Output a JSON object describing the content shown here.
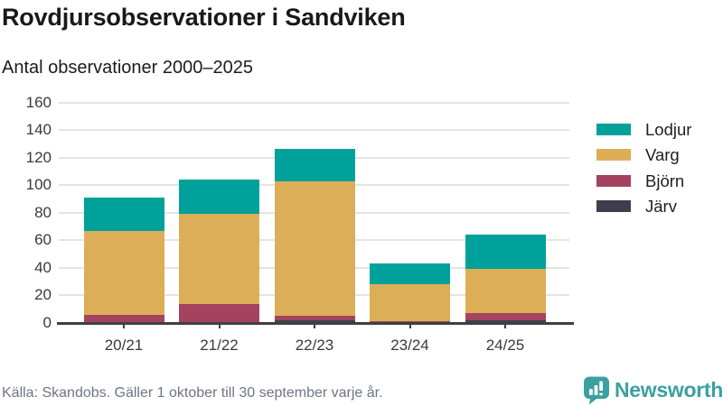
{
  "header": {
    "title": "Rovdjursobservationer i Sandviken",
    "subtitle": "Antal observationer 2000–2025"
  },
  "chart_data": {
    "type": "bar",
    "stacked": true,
    "title": "Rovdjursobservationer i Sandviken",
    "subtitle": "Antal observationer 2000–2025",
    "categories": [
      "20/21",
      "21/22",
      "22/23",
      "23/24",
      "24/25"
    ],
    "series": [
      {
        "name": "Lodjur",
        "color": "#00a19a",
        "values": [
          24,
          25,
          23,
          15,
          25
        ]
      },
      {
        "name": "Varg",
        "color": "#dcae57",
        "values": [
          61,
          65,
          98,
          27,
          32
        ]
      },
      {
        "name": "Björn",
        "color": "#a4435f",
        "values": [
          6,
          14,
          3,
          1,
          5
        ]
      },
      {
        "name": "Järv",
        "color": "#403d4f",
        "values": [
          0,
          0,
          2,
          0,
          2
        ]
      }
    ],
    "totals": [
      91,
      104,
      126,
      43,
      64
    ],
    "ylim": [
      0,
      160
    ],
    "ytick_step": 20,
    "yticks": [
      0,
      20,
      40,
      60,
      80,
      100,
      120,
      140,
      160
    ],
    "grid": true,
    "legend_position": "right",
    "xlabel": "",
    "ylabel": ""
  },
  "colors": {
    "accent_teal": "#00a19a",
    "gold": "#dcae57",
    "maroon": "#a4435f",
    "dark": "#403d4f",
    "gridline": "#e4e4e4",
    "axis": "#3f3f3f",
    "brand_teal": "#3ba0a0"
  },
  "footer": {
    "source": "Källa: Skandobs. Gäller 1 oktober till 30 september varje år.",
    "brand": "Newsworthy"
  }
}
